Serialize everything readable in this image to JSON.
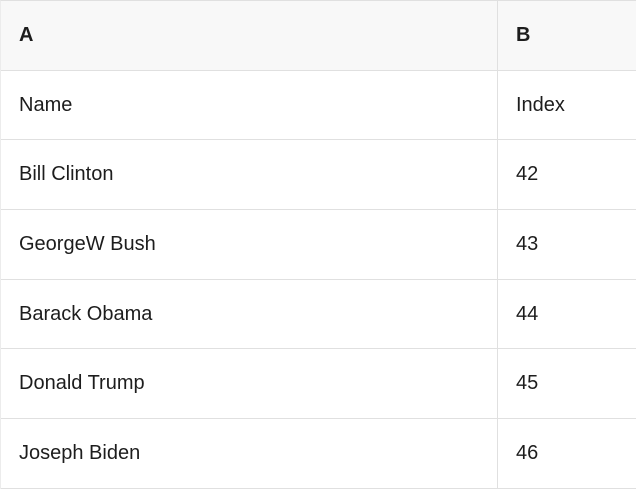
{
  "grid": {
    "column_headers": [
      "A",
      "B"
    ],
    "rows": [
      [
        "Name",
        "Index"
      ],
      [
        "Bill Clinton",
        "42"
      ],
      [
        "GeorgeW Bush",
        "43"
      ],
      [
        "Barack Obama",
        "44"
      ],
      [
        "Donald Trump",
        "45"
      ],
      [
        "Joseph Biden",
        "46"
      ]
    ]
  },
  "colors": {
    "header_background": "#f8f8f8",
    "grid_border": "#e0e0e0",
    "text": "#1d1d1d",
    "row_background": "#ffffff"
  }
}
